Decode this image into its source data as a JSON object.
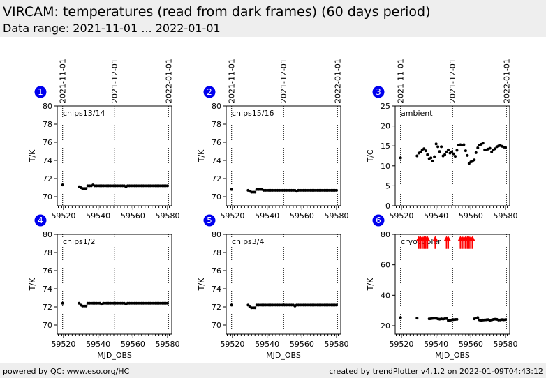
{
  "header": {
    "title": "VIRCAM: temperatures (read from dark frames) (60 days period)",
    "subtitle": "Data range: 2021-11-01 ... 2022-01-01"
  },
  "footer": {
    "left": "powered by QC: www.eso.org/HC",
    "right": "created by trendPlotter v4.1.2 on 2022-01-09T04:43:12"
  },
  "colors": {
    "badge": "#0000ee",
    "outlier": "#ff0000",
    "points": "#000000"
  },
  "chart_data": {
    "type": "scatter",
    "x": [
      59519.5,
      59529,
      59530,
      59531,
      59532,
      59533,
      59534,
      59535,
      59536,
      59537,
      59538,
      59539,
      59540,
      59541,
      59542,
      59543,
      59544,
      59545,
      59546,
      59547,
      59548,
      59549,
      59550,
      59551,
      59552,
      59553,
      59554,
      59555,
      59556,
      59557,
      59558,
      59559,
      59560,
      59561,
      59562,
      59563,
      59564,
      59565,
      59566,
      59567,
      59568,
      59569,
      59570,
      59571,
      59572,
      59573,
      59574,
      59575,
      59576,
      59577,
      59578,
      59579,
      59580
    ],
    "date_ticks": [
      {
        "label": "2021-11-01",
        "mjd": 59519.5
      },
      {
        "label": "2021-12-01",
        "mjd": 59549.5
      },
      {
        "label": "2022-01-01",
        "mjd": 59580.5
      }
    ],
    "xticks": [
      59520,
      59540,
      59560,
      59580
    ],
    "xlim": [
      59516.4,
      59582.4
    ],
    "xlabel": "MJD_OBS",
    "panels": [
      {
        "id": "1",
        "label": "chips13/14",
        "ylabel": "T/K",
        "ylim": [
          69,
          80
        ],
        "yticks": [
          70,
          72,
          74,
          76,
          78,
          80
        ],
        "y": [
          71.3,
          71.1,
          71.0,
          70.9,
          70.9,
          70.9,
          71.2,
          71.2,
          71.2,
          71.3,
          71.2,
          71.2,
          71.2,
          71.2,
          71.2,
          71.2,
          71.2,
          71.2,
          71.2,
          71.2,
          71.2,
          71.2,
          71.2,
          71.2,
          71.2,
          71.2,
          71.2,
          71.2,
          71.1,
          71.2,
          71.2,
          71.2,
          71.2,
          71.2,
          71.2,
          71.2,
          71.2,
          71.2,
          71.2,
          71.2,
          71.2,
          71.2,
          71.2,
          71.2,
          71.2,
          71.2,
          71.2,
          71.2,
          71.2,
          71.2,
          71.2,
          71.2,
          71.2
        ]
      },
      {
        "id": "2",
        "label": "chips15/16",
        "ylabel": "T/K",
        "ylim": [
          69,
          80
        ],
        "yticks": [
          70,
          72,
          74,
          76,
          78,
          80
        ],
        "y": [
          70.8,
          70.7,
          70.6,
          70.5,
          70.5,
          70.5,
          70.8,
          70.8,
          70.8,
          70.8,
          70.7,
          70.7,
          70.7,
          70.7,
          70.7,
          70.7,
          70.7,
          70.7,
          70.7,
          70.7,
          70.7,
          70.7,
          70.7,
          70.7,
          70.7,
          70.7,
          70.7,
          70.7,
          70.7,
          70.6,
          70.7,
          70.7,
          70.7,
          70.7,
          70.7,
          70.7,
          70.7,
          70.7,
          70.7,
          70.7,
          70.7,
          70.7,
          70.7,
          70.7,
          70.7,
          70.7,
          70.7,
          70.7,
          70.7,
          70.7,
          70.7,
          70.7,
          70.7
        ]
      },
      {
        "id": "3",
        "label": "ambient",
        "ylabel": "T/C",
        "ylim": [
          0,
          25
        ],
        "yticks": [
          0,
          5,
          10,
          15,
          20,
          25
        ],
        "y": [
          12.0,
          12.5,
          13.2,
          13.5,
          14.0,
          14.3,
          13.8,
          12.8,
          11.8,
          12.0,
          11.2,
          12.3,
          15.5,
          14.8,
          13.6,
          14.8,
          12.5,
          12.8,
          13.5,
          14.0,
          13.2,
          13.5,
          13.0,
          12.4,
          13.9,
          15.2,
          15.3,
          15.2,
          15.3,
          13.8,
          12.6,
          10.6,
          11.0,
          11.1,
          11.5,
          13.3,
          14.5,
          15.2,
          15.4,
          15.7,
          14.0,
          14.0,
          14.2,
          14.4,
          13.5,
          14.0,
          14.3,
          14.8,
          15.0,
          15.1,
          14.9,
          14.7,
          14.6
        ]
      },
      {
        "id": "4",
        "label": "chips1/2",
        "ylabel": "T/K",
        "ylim": [
          69,
          80
        ],
        "yticks": [
          70,
          72,
          74,
          76,
          78,
          80
        ],
        "y": [
          72.4,
          72.4,
          72.2,
          72.1,
          72.1,
          72.1,
          72.4,
          72.4,
          72.4,
          72.4,
          72.4,
          72.4,
          72.4,
          72.4,
          72.3,
          72.4,
          72.4,
          72.4,
          72.4,
          72.4,
          72.4,
          72.4,
          72.4,
          72.4,
          72.4,
          72.4,
          72.4,
          72.4,
          72.3,
          72.4,
          72.4,
          72.4,
          72.4,
          72.4,
          72.4,
          72.4,
          72.4,
          72.4,
          72.4,
          72.4,
          72.4,
          72.4,
          72.4,
          72.4,
          72.4,
          72.4,
          72.4,
          72.4,
          72.4,
          72.4,
          72.4,
          72.4,
          72.4
        ]
      },
      {
        "id": "5",
        "label": "chips3/4",
        "ylabel": "T/K",
        "ylim": [
          69,
          80
        ],
        "yticks": [
          70,
          72,
          74,
          76,
          78,
          80
        ],
        "y": [
          72.2,
          72.2,
          72.0,
          71.9,
          71.9,
          71.9,
          72.2,
          72.2,
          72.2,
          72.2,
          72.2,
          72.2,
          72.2,
          72.2,
          72.2,
          72.2,
          72.2,
          72.2,
          72.2,
          72.2,
          72.2,
          72.2,
          72.2,
          72.2,
          72.2,
          72.2,
          72.2,
          72.2,
          72.1,
          72.2,
          72.2,
          72.2,
          72.2,
          72.2,
          72.2,
          72.2,
          72.2,
          72.2,
          72.2,
          72.2,
          72.2,
          72.2,
          72.2,
          72.2,
          72.2,
          72.2,
          72.2,
          72.2,
          72.2,
          72.2,
          72.2,
          72.2,
          72.2
        ]
      },
      {
        "id": "6",
        "label": "cryocooler",
        "ylabel": "T/K",
        "ylim": [
          14.5,
          80
        ],
        "yticks": [
          20,
          40,
          60,
          80
        ],
        "y": [
          25.3,
          25.0,
          null,
          null,
          null,
          null,
          null,
          null,
          24.5,
          24.6,
          24.8,
          24.9,
          24.8,
          24.5,
          24.3,
          24.5,
          24.4,
          24.6,
          24.7,
          23.4,
          23.6,
          23.8,
          24.0,
          24.1,
          24.2,
          null,
          null,
          null,
          null,
          null,
          null,
          null,
          null,
          null,
          24.5,
          25.0,
          25.3,
          23.8,
          23.6,
          23.7,
          23.8,
          23.9,
          24.0,
          23.6,
          23.8,
          24.1,
          24.3,
          24.2,
          23.7,
          23.8,
          24.0,
          23.9,
          24.0
        ],
        "outliers_above": [
          59530,
          59531,
          59532,
          59533,
          59534,
          59535,
          59539.5,
          59546,
          59547,
          59554,
          59555,
          59556,
          59557,
          59558,
          59559,
          59560,
          59561
        ]
      }
    ]
  }
}
